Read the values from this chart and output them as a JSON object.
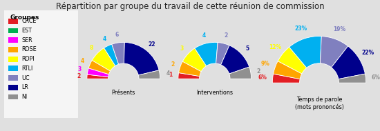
{
  "title": "Répartition par groupe du travail de cette réunion de commission",
  "groups": [
    "CRCE",
    "EST",
    "SER",
    "RDSE",
    "RDPI",
    "RTLI",
    "UC",
    "LR",
    "NI"
  ],
  "colors": [
    "#e31e24",
    "#00b050",
    "#ff00ff",
    "#ffa500",
    "#ffff00",
    "#00b0f0",
    "#8080bf",
    "#00008b",
    "#909090"
  ],
  "presents": [
    2,
    0,
    3,
    4,
    8,
    4,
    6,
    22,
    4
  ],
  "interventions": [
    1,
    0,
    0,
    2,
    3,
    4,
    2,
    5,
    2
  ],
  "temps_parole_pct": [
    6,
    0,
    0,
    9,
    12,
    23,
    19,
    22,
    6
  ],
  "legend_title": "Groupes",
  "label1": "Présents",
  "label2": "Interventions",
  "label3": "Temps de parole\n(mots prononcés)",
  "bg_color": "#e0e0e0",
  "legend_bg": "#f5f5f5"
}
